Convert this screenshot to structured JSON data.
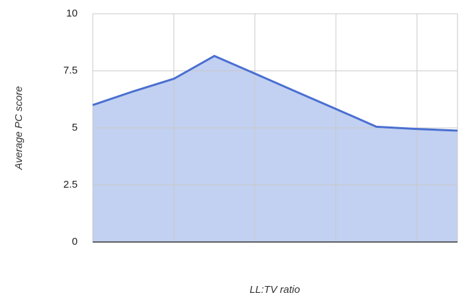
{
  "chart_data": {
    "type": "area",
    "y_label": "Average PC score",
    "x_label": "LL:TV ratio",
    "categories": [
      null,
      null,
      null,
      null,
      null,
      null,
      null,
      null,
      null,
      null
    ],
    "values": [
      6.0,
      6.6,
      7.15,
      8.15,
      7.38,
      6.6,
      5.83,
      5.05,
      4.95,
      4.88
    ],
    "color": "#4a6fd1",
    "fill": "#c2d1f1",
    "ylim": [
      0,
      10
    ],
    "yticks": [
      0,
      2.5,
      5,
      7.5,
      10
    ],
    "grid": true
  }
}
